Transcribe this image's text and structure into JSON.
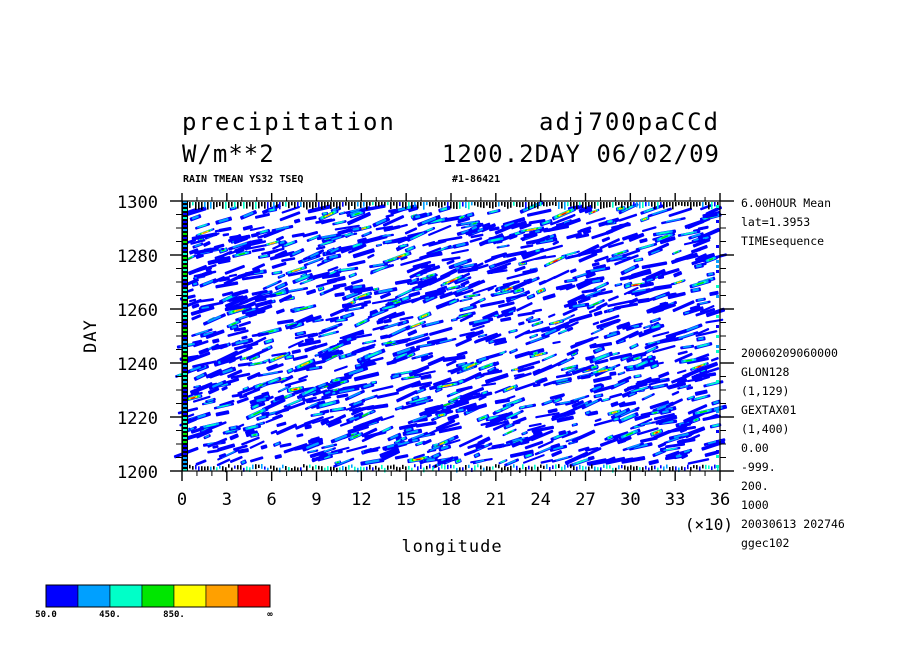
{
  "header": {
    "title_left": "precipitation",
    "title_right": "adj700paCCd",
    "units": "W/m**2",
    "time_info": "1200.2DAY 06/02/09",
    "subtitle": "RAIN TMEAN YS32 TSEQ",
    "run_id": "#1-86421"
  },
  "side_info": {
    "top": [
      "6.00HOUR Mean",
      "lat=1.3953",
      "TIMEsequence"
    ],
    "bottom": [
      "20060209060000",
      "GLON128",
      "(1,129)",
      "GEXTAX01",
      "(1,400)",
      "0.00",
      "-999.",
      "200.",
      "1000",
      "20030613 202746",
      "ggec102"
    ]
  },
  "chart_data": {
    "type": "heatmap",
    "xlabel": "longitude",
    "ylabel": "DAY",
    "x_multiplier": "(×10)",
    "xlim": [
      0,
      36
    ],
    "ylim": [
      1200,
      1300
    ],
    "x_ticks": [
      0,
      3,
      6,
      9,
      12,
      15,
      18,
      21,
      24,
      27,
      30,
      33,
      36
    ],
    "x_tick_labels": [
      "0",
      "3",
      "6",
      "9",
      "12",
      "15",
      "18",
      "21",
      "24",
      "27",
      "30",
      "33",
      "36"
    ],
    "y_ticks": [
      1200,
      1220,
      1240,
      1260,
      1280,
      1300
    ],
    "y_tick_labels": [
      "1200",
      "1220",
      "1240",
      "1260",
      "1280",
      "1300"
    ],
    "colorbar": {
      "colors": [
        "#0000ff",
        "#00a0ff",
        "#00ffc8",
        "#00e600",
        "#ffff00",
        "#ffa000",
        "#ff0000"
      ],
      "labels": [
        "50.0",
        "450.",
        "850.",
        "∞"
      ],
      "label_positions": [
        0,
        1,
        2,
        7
      ]
    },
    "pattern": "stochastic eastward-propagating precipitation streaks over the full domain"
  }
}
